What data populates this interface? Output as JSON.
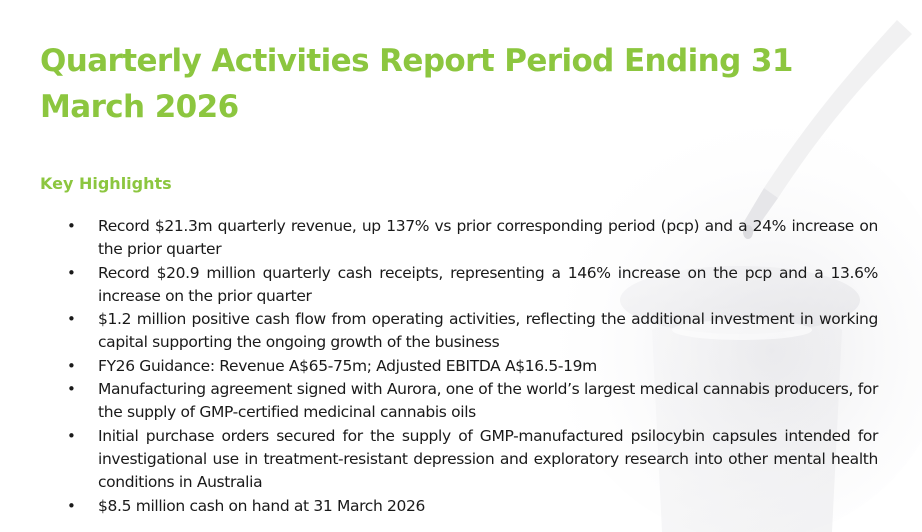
{
  "report": {
    "title": "Quarterly Activities Report Period Ending 31 March 2026",
    "section_heading": "Key Highlights",
    "highlights": [
      "Record $21.3m quarterly revenue, up 137% vs prior corresponding period (pcp) and a 24% increase on the prior quarter",
      "Record $20.9 million quarterly cash receipts, representing a 146% increase on the pcp and a 13.6% increase on the prior quarter",
      "$1.2 million positive cash flow from operating activities, reflecting the additional investment in working capital supporting the ongoing growth of the business",
      "FY26 Guidance: Revenue A$65-75m; Adjusted EBITDA A$16.5-19m",
      "Manufacturing agreement signed with Aurora, one of the world’s largest medical cannabis producers, for the supply of GMP-certified medicinal cannabis oils",
      "Initial purchase orders secured for the supply of GMP-manufactured psilocybin capsules intended for investigational use in treatment-resistant depression and exploratory research into other mental health conditions in Australia",
      "$8.5 million cash on hand at 31 March 2026"
    ]
  },
  "colors": {
    "accent": "#8cc63f",
    "text": "#1a1a1a",
    "background": "#ffffff"
  },
  "decor": {
    "background_image": "dropper-bottle-watermark"
  }
}
